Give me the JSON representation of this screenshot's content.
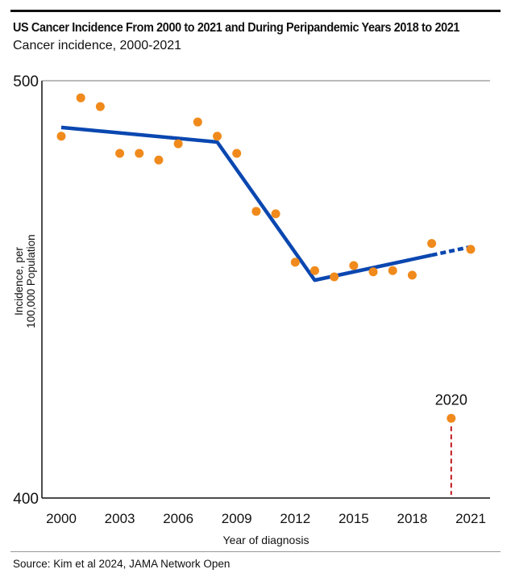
{
  "chart_data": {
    "type": "scatter",
    "title": "US Cancer Incidence From 2000 to 2021 and During Peripandemic Years 2018 to 2021",
    "subtitle": "Cancer incidence, 2000-2021",
    "xlabel": "Year of diagnosis",
    "ylabel": "Incidence, per 100,000 Population",
    "ylim": [
      400,
      500
    ],
    "xlim": [
      2000,
      2021
    ],
    "yticks": [
      400,
      500
    ],
    "xticks": [
      2000,
      2003,
      2006,
      2009,
      2012,
      2015,
      2018,
      2021
    ],
    "grid": false,
    "points": {
      "x": [
        2000,
        2001,
        2002,
        2003,
        2004,
        2005,
        2006,
        2007,
        2008,
        2009,
        2010,
        2011,
        2012,
        2013,
        2014,
        2015,
        2016,
        2017,
        2018,
        2019,
        2020,
        2021
      ],
      "y": [
        486.7,
        495.9,
        493.8,
        482.6,
        482.6,
        481.0,
        484.9,
        490.1,
        486.7,
        482.6,
        468.7,
        468.1,
        456.5,
        454.5,
        453.0,
        455.7,
        454.2,
        454.5,
        453.4,
        461.0,
        419.1,
        459.6
      ],
      "color": "#f08a1c"
    },
    "trend": {
      "solid": {
        "x": [
          2000,
          2008,
          2013,
          2019
        ],
        "y": [
          488.8,
          485.3,
          452.2,
          458.2
        ]
      },
      "dashed": {
        "x": [
          2019,
          2021
        ],
        "y": [
          458.2,
          460.2
        ]
      },
      "color": "#0a47b0"
    },
    "annotation": {
      "text": "2020",
      "x": 2020,
      "y": 419.1,
      "line_color": "#c0161a"
    },
    "source": "Source: Kim et al 2024, JAMA Network Open"
  }
}
